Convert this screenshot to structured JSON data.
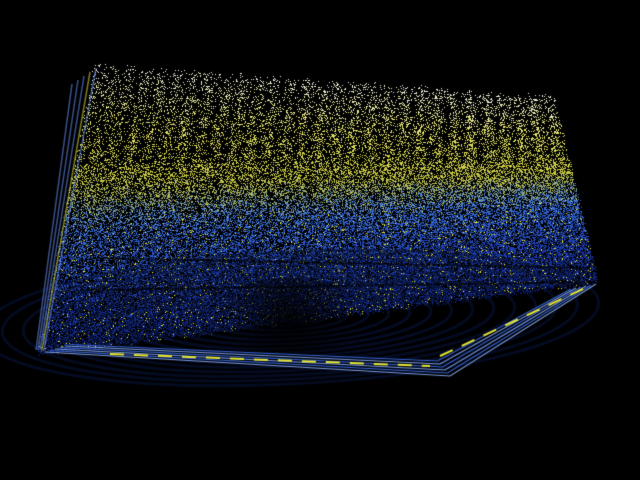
{
  "scene": {
    "description_visible_text": "",
    "background_color": "#000000",
    "palette": {
      "top": "#f2f2e6",
      "upper_mid": "#e3e36a",
      "mid": "#c9c93a",
      "lower_mid": "#3a6fd8",
      "bottom": "#1b3aa8",
      "deep": "#0d1f6b",
      "accent_line": "#e6e62e",
      "edge_line": "#8fb4ff"
    },
    "render_style": "point-cloud"
  }
}
